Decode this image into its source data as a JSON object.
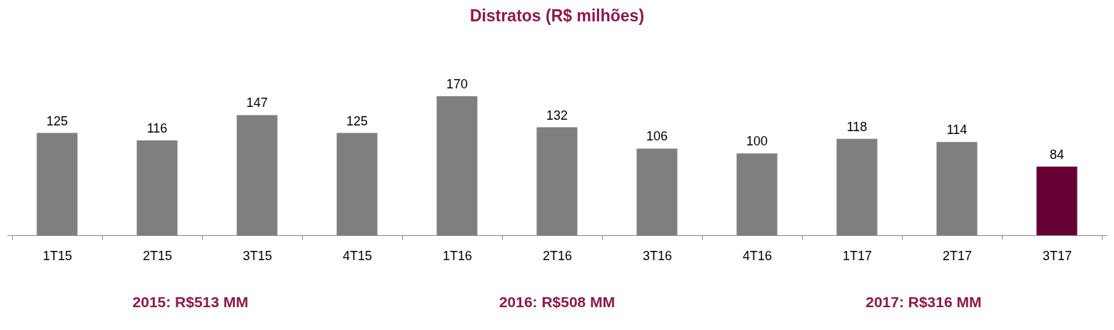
{
  "chart_data": {
    "type": "bar",
    "title": "Distratos (R$ milhões)",
    "categories": [
      "1T15",
      "2T15",
      "3T15",
      "4T15",
      "1T16",
      "2T16",
      "3T16",
      "4T16",
      "1T17",
      "2T17",
      "3T17"
    ],
    "values": [
      125,
      116,
      147,
      125,
      170,
      132,
      106,
      100,
      118,
      114,
      84
    ],
    "colors": [
      "#7f7f7f",
      "#7f7f7f",
      "#7f7f7f",
      "#7f7f7f",
      "#7f7f7f",
      "#7f7f7f",
      "#7f7f7f",
      "#7f7f7f",
      "#7f7f7f",
      "#7f7f7f",
      "#660033"
    ],
    "data_labels": true,
    "grid": false,
    "legend": false,
    "annotations": [
      "2015: R$513 MM",
      "2016: R$508 MM",
      "2017: R$316 MM"
    ]
  }
}
